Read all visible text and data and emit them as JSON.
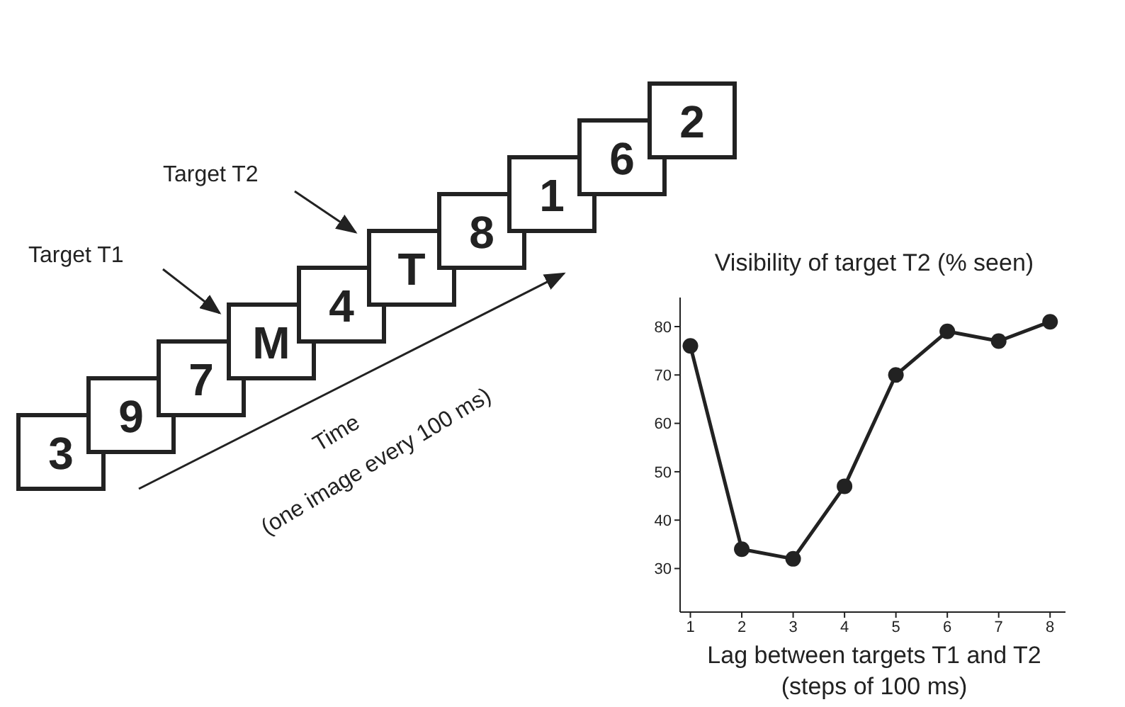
{
  "chart_data": {
    "type": "line",
    "title": "Visibility of target T2 (% seen)",
    "xlabel": "Lag between targets T1 and T2\n(steps of 100 ms)",
    "x": [
      1,
      2,
      3,
      4,
      5,
      6,
      7,
      8
    ],
    "series": [
      {
        "color": "#222222",
        "values": [
          76,
          34,
          32,
          47,
          70,
          79,
          77,
          81
        ]
      }
    ],
    "xlim": [
      0.8,
      8.3
    ],
    "xticks": [
      1,
      2,
      3,
      4,
      5,
      6,
      7,
      8
    ],
    "ylim": [
      21,
      86
    ],
    "yticks": [
      30,
      40,
      50,
      60,
      70,
      80
    ],
    "grid": false,
    "marker": "circle",
    "line_style": "solid",
    "annotations": [
      "3",
      "9",
      "7",
      "M",
      "4",
      "T",
      "8",
      "1",
      "6",
      "2",
      "Target T1",
      "Target T2",
      "Time",
      "(one image every 100 ms)"
    ]
  }
}
